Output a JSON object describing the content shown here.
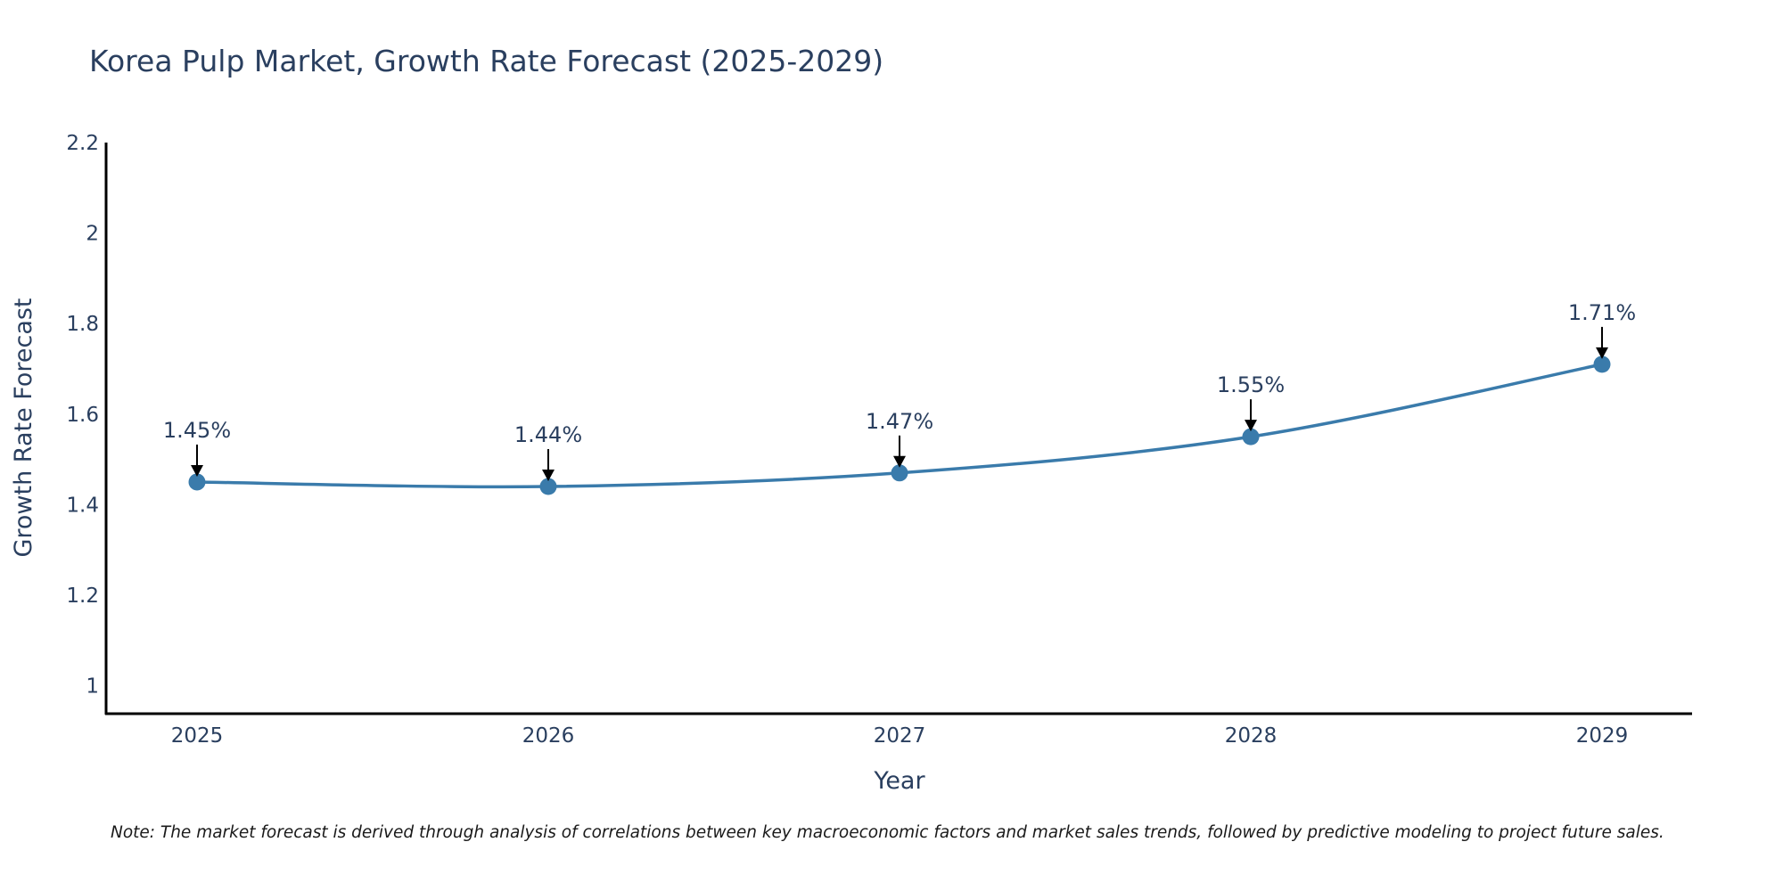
{
  "chart_data": {
    "type": "line",
    "title": "Korea Pulp Market, Growth Rate Forecast (2025-2029)",
    "xlabel": "Year",
    "ylabel": "Growth Rate Forecast",
    "categories": [
      "2025",
      "2026",
      "2027",
      "2028",
      "2029"
    ],
    "series": [
      {
        "name": "Growth Rate Forecast",
        "values": [
          1.45,
          1.44,
          1.47,
          1.55,
          1.71
        ],
        "labels": [
          "1.45%",
          "1.44%",
          "1.47%",
          "1.55%",
          "1.71%"
        ],
        "color": "#3a7bab"
      }
    ],
    "ylim": [
      0.94,
      2.2
    ],
    "yticks": [
      "1",
      "1.2",
      "1.4",
      "1.6",
      "1.8",
      "2",
      "2.2"
    ],
    "grid": false,
    "line_shape": "spline",
    "note": "Note: The market forecast is derived through analysis of correlations between key macroeconomic factors and market sales trends, followed by predictive modeling to project future sales."
  }
}
